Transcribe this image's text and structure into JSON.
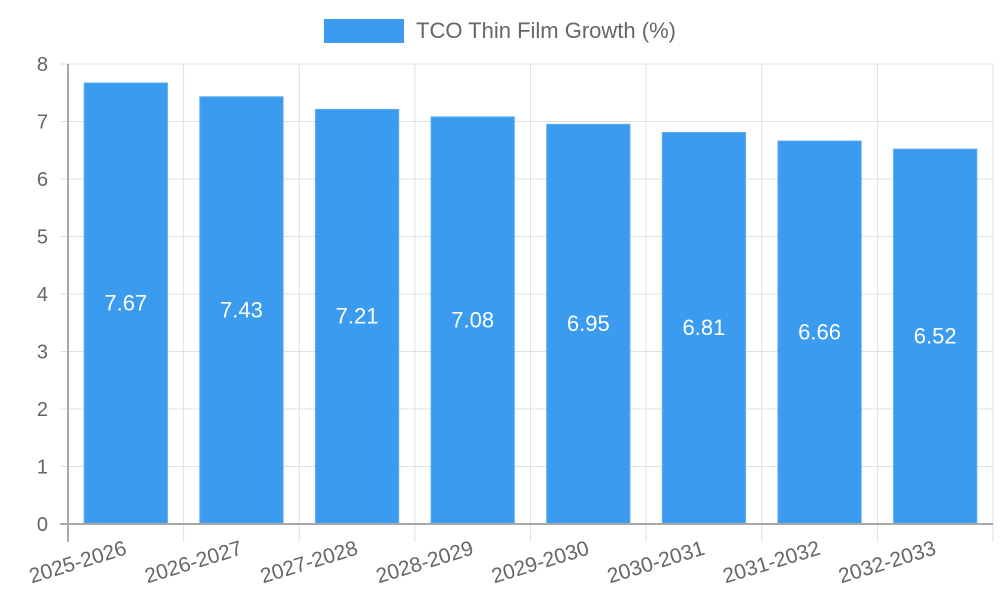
{
  "legend": {
    "label": "TCO Thin Film Growth (%)",
    "color": "#3a9bef"
  },
  "colors": {
    "bar": "#3a9bef",
    "bar_border": "#5cadf2",
    "grid": "#e0e0e0",
    "axis": "#a8a8a8",
    "tick_text": "#666666",
    "value_label": "#ffffff"
  },
  "chart_data": {
    "type": "bar",
    "title": "",
    "xlabel": "",
    "ylabel": "",
    "categories": [
      "2025-2026",
      "2026-2027",
      "2027-2028",
      "2028-2029",
      "2029-2030",
      "2030-2031",
      "2031-2032",
      "2032-2033"
    ],
    "series": [
      {
        "name": "TCO Thin Film Growth (%)",
        "values": [
          7.67,
          7.43,
          7.21,
          7.08,
          6.95,
          6.81,
          6.66,
          6.52
        ]
      }
    ],
    "ylim": [
      0,
      8
    ],
    "yticks": [
      0,
      1,
      2,
      3,
      4,
      5,
      6,
      7,
      8
    ],
    "grid": true,
    "legend_position": "top",
    "data_labels": [
      "7.67",
      "7.43",
      "7.21",
      "7.08",
      "6.95",
      "6.81",
      "6.66",
      "6.52"
    ]
  }
}
